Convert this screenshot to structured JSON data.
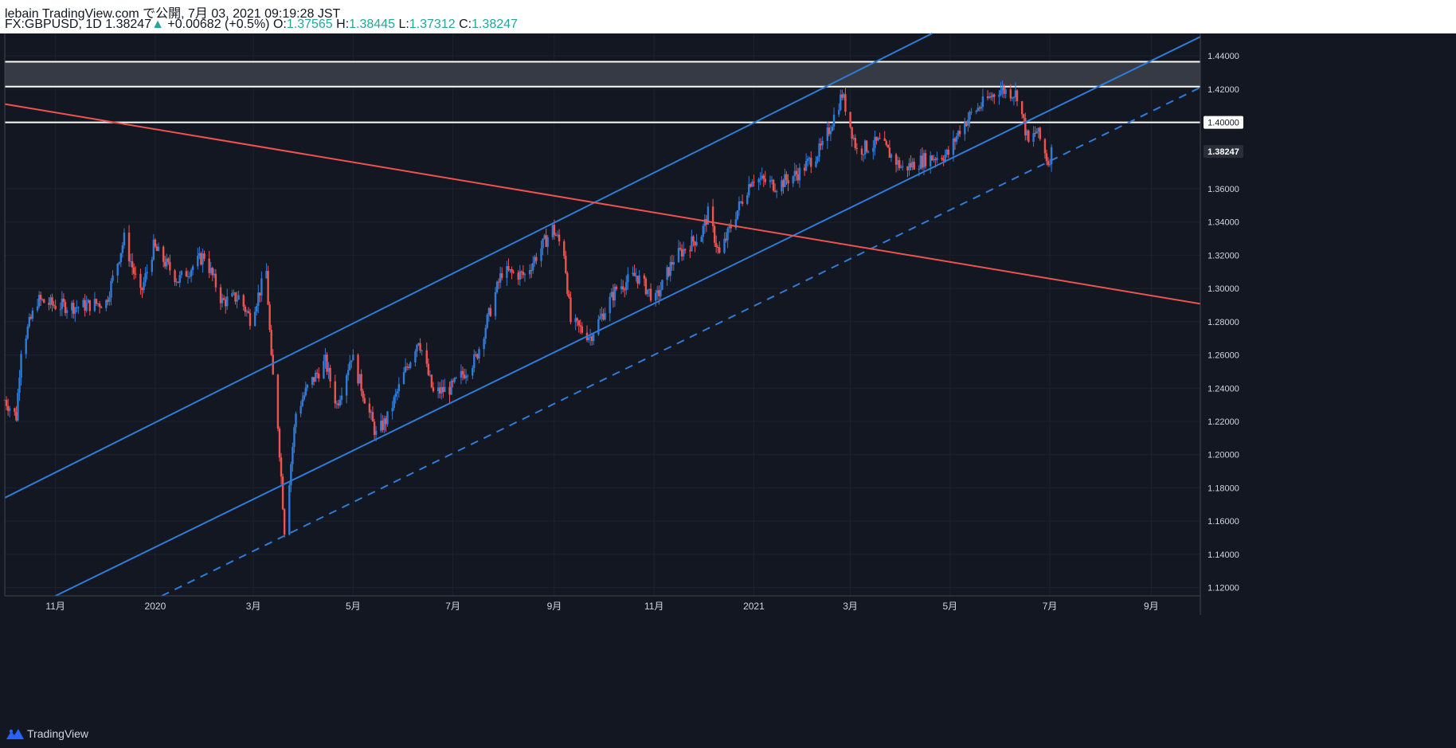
{
  "header": {
    "publish_info": "lebain TradingView.com で公開, 7月 03, 2021 09:19:28 JST",
    "symbol": "FX:GBPUSD, 1D",
    "last": "1.38247",
    "change_arrow": "▲",
    "change": "+0.00682 (+0.5%)",
    "o_label": "O:",
    "o_value": "1.37565",
    "h_label": "H:",
    "h_value": "1.38445",
    "l_label": "L:",
    "l_value": "1.37312",
    "c_label": "C:",
    "c_value": "1.38247"
  },
  "footer": {
    "brand": "TradingView",
    "logo_icon": "tradingview-logo-icon"
  },
  "colors": {
    "background": "#131722",
    "up": "#2f7bd8",
    "down": "#ef5350",
    "channel": "#2f7bd8",
    "downtrend": "#ef5350",
    "level": "#ffffff",
    "zone": "#3a3e49",
    "grid": "#1e2230",
    "axis_text": "#d1d4dc"
  },
  "chart_data": {
    "type": "candlestick",
    "symbol": "FX:GBPUSD",
    "interval": "1D",
    "y_range": [
      1.115,
      1.4535
    ],
    "x_range": [
      "2019-10-01",
      "2021-10-01"
    ],
    "grid": true,
    "y_ticks": [
      "1.44000",
      "1.42000",
      "1.40000",
      "1.38247",
      "1.36000",
      "1.34000",
      "1.32000",
      "1.30000",
      "1.28000",
      "1.26000",
      "1.24000",
      "1.22000",
      "1.20000",
      "1.18000",
      "1.16000",
      "1.14000",
      "1.12000"
    ],
    "x_ticks": [
      {
        "label": "11月",
        "date": "2019-11-01"
      },
      {
        "label": "2020",
        "date": "2020-01-01"
      },
      {
        "label": "3月",
        "date": "2020-03-01"
      },
      {
        "label": "5月",
        "date": "2020-05-01"
      },
      {
        "label": "7月",
        "date": "2020-07-01"
      },
      {
        "label": "9月",
        "date": "2020-09-01"
      },
      {
        "label": "11月",
        "date": "2020-11-01"
      },
      {
        "label": "2021",
        "date": "2021-01-01"
      },
      {
        "label": "3月",
        "date": "2021-03-01"
      },
      {
        "label": "5月",
        "date": "2021-05-01"
      },
      {
        "label": "7月",
        "date": "2021-07-01"
      },
      {
        "label": "9月",
        "date": "2021-09-01"
      }
    ],
    "current_price": "1.38247",
    "price_path": [
      [
        "2019-10-01",
        1.233
      ],
      [
        "2019-10-08",
        1.223
      ],
      [
        "2019-10-11",
        1.264
      ],
      [
        "2019-10-21",
        1.293
      ],
      [
        "2019-10-31",
        1.29
      ],
      [
        "2019-11-15",
        1.289
      ],
      [
        "2019-12-02",
        1.292
      ],
      [
        "2019-12-13",
        1.33
      ],
      [
        "2019-12-23",
        1.296
      ],
      [
        "2019-12-31",
        1.325
      ],
      [
        "2020-01-15",
        1.305
      ],
      [
        "2020-01-31",
        1.32
      ],
      [
        "2020-02-11",
        1.292
      ],
      [
        "2020-02-21",
        1.295
      ],
      [
        "2020-02-28",
        1.282
      ],
      [
        "2020-03-09",
        1.31
      ],
      [
        "2020-03-12",
        1.256
      ],
      [
        "2020-03-16",
        1.218
      ],
      [
        "2020-03-20",
        1.155
      ],
      [
        "2020-03-27",
        1.225
      ],
      [
        "2020-04-03",
        1.24
      ],
      [
        "2020-04-14",
        1.256
      ],
      [
        "2020-04-21",
        1.23
      ],
      [
        "2020-04-30",
        1.26
      ],
      [
        "2020-05-15",
        1.212
      ],
      [
        "2020-05-22",
        1.222
      ],
      [
        "2020-06-01",
        1.248
      ],
      [
        "2020-06-10",
        1.27
      ],
      [
        "2020-06-19",
        1.237
      ],
      [
        "2020-06-30",
        1.24
      ],
      [
        "2020-07-15",
        1.258
      ],
      [
        "2020-07-31",
        1.31
      ],
      [
        "2020-08-14",
        1.308
      ],
      [
        "2020-08-31",
        1.336
      ],
      [
        "2020-09-07",
        1.322
      ],
      [
        "2020-09-11",
        1.28
      ],
      [
        "2020-09-23",
        1.271
      ],
      [
        "2020-10-09",
        1.3
      ],
      [
        "2020-10-21",
        1.308
      ],
      [
        "2020-11-02",
        1.293
      ],
      [
        "2020-11-13",
        1.318
      ],
      [
        "2020-11-30",
        1.333
      ],
      [
        "2020-12-04",
        1.345
      ],
      [
        "2020-12-11",
        1.32
      ],
      [
        "2020-12-21",
        1.345
      ],
      [
        "2020-12-31",
        1.367
      ],
      [
        "2021-01-15",
        1.362
      ],
      [
        "2021-01-29",
        1.37
      ],
      [
        "2021-02-12",
        1.385
      ],
      [
        "2021-02-24",
        1.417
      ],
      [
        "2021-03-05",
        1.383
      ],
      [
        "2021-03-19",
        1.388
      ],
      [
        "2021-04-02",
        1.372
      ],
      [
        "2021-04-16",
        1.378
      ],
      [
        "2021-04-30",
        1.381
      ],
      [
        "2021-05-07",
        1.396
      ],
      [
        "2021-05-14",
        1.405
      ],
      [
        "2021-05-31",
        1.42
      ],
      [
        "2021-06-11",
        1.417
      ],
      [
        "2021-06-18",
        1.387
      ],
      [
        "2021-06-23",
        1.395
      ],
      [
        "2021-06-30",
        1.376
      ],
      [
        "2021-07-02",
        1.3825
      ]
    ],
    "lines": [
      {
        "name": "channel-upper",
        "style": "solid",
        "color": "#2f7bd8",
        "p1": [
          "2019-10-01",
          1.174
        ],
        "p2": [
          "2021-04-20",
          1.4535
        ]
      },
      {
        "name": "channel-lower",
        "style": "solid",
        "color": "#2f7bd8",
        "p1": [
          "2019-11-01",
          1.115
        ],
        "p2": [
          "2021-10-01",
          1.4515
        ]
      },
      {
        "name": "channel-dashed",
        "style": "dashed",
        "color": "#2f7bd8",
        "p1": [
          "2020-01-05",
          1.115
        ],
        "p2": [
          "2021-10-01",
          1.421
        ]
      },
      {
        "name": "downtrend",
        "style": "solid",
        "color": "#ef5350",
        "p1": [
          "2019-10-01",
          1.411
        ],
        "p2": [
          "2021-10-01",
          1.2908
        ]
      }
    ],
    "levels": [
      1.4365,
      1.4215,
      1.4
    ],
    "zone": [
      1.4215,
      1.4365
    ]
  }
}
